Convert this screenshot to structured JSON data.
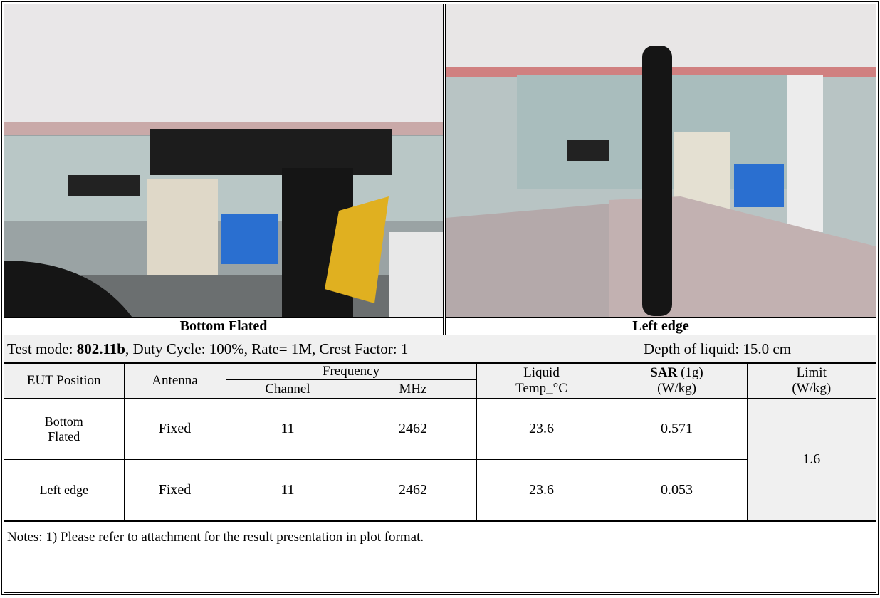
{
  "photos": [
    {
      "caption": "Bottom Flated"
    },
    {
      "caption": "Left edge"
    }
  ],
  "test_mode": {
    "label": "Test mode:",
    "mode": "802.11b",
    "rest": ", Duty Cycle: 100%, Rate= 1M, Crest Factor: 1",
    "depth": "Depth of liquid: 15.0 cm"
  },
  "table": {
    "headers": {
      "position": "EUT Position",
      "antenna": "Antenna",
      "frequency": "Frequency",
      "channel": "Channel",
      "mhz": "MHz",
      "liquid": "Liquid",
      "temp": "Temp_°C",
      "sar": "SAR",
      "sar_unit": "(1g)",
      "sar_unit2": "(W/kg)",
      "limit": "Limit",
      "limit_unit": "(W/kg)"
    },
    "rows": [
      [
        "Bottom Flated",
        "Fixed",
        11,
        2462,
        23.6,
        0.571
      ],
      [
        "Left edge",
        "Fixed",
        11,
        2462,
        23.6,
        0.053
      ]
    ],
    "limit": 1.6
  },
  "notes": "Notes: 1) Please refer to attachment for the result presentation in plot format."
}
